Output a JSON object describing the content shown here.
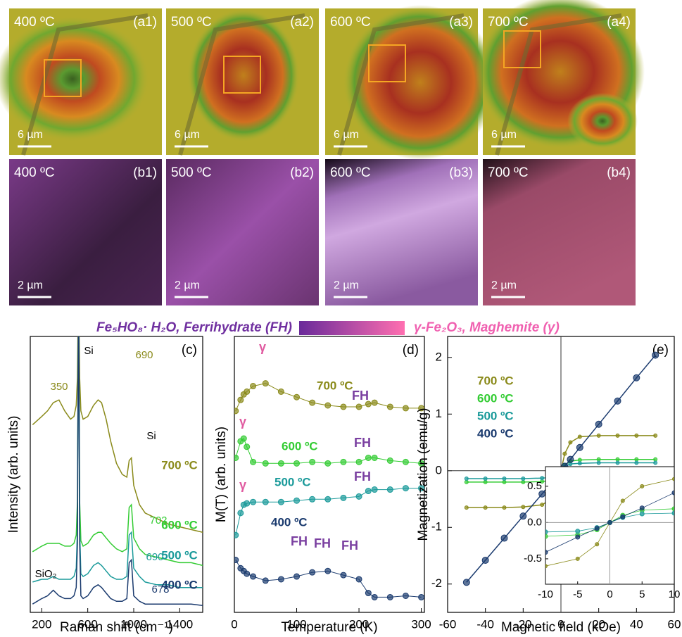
{
  "micrographs": [
    {
      "temperature": "400 ºC",
      "label": "(a1)",
      "scale": "6 µm"
    },
    {
      "temperature": "500 ºC",
      "label": "(a2)",
      "scale": "6 µm"
    },
    {
      "temperature": "600 ºC",
      "label": "(a3)",
      "scale": "6 µm"
    },
    {
      "temperature": "700 ºC",
      "label": "(a4)",
      "scale": "6 µm"
    },
    {
      "temperature": "400 ºC",
      "label": "(b1)",
      "scale": "2 µm"
    },
    {
      "temperature": "500 ºC",
      "label": "(b2)",
      "scale": "2 µm"
    },
    {
      "temperature": "600 ºC",
      "label": "(b3)",
      "scale": "2 µm"
    },
    {
      "temperature": "700 ºC",
      "label": "(b4)",
      "scale": "2 µm"
    }
  ],
  "color_legend": {
    "left": "Fe₅HO₈· H₂O, Ferrihydrate (FH)",
    "right": "γ-Fe₂O₃, Maghemite (γ)",
    "left_color": "#7030a0",
    "right_color": "#f060b0"
  },
  "chart_data": [
    {
      "type": "line",
      "panel": "(c)",
      "xlabel": "Raman shift (cm⁻¹)",
      "ylabel": "Intensity (arb. units)",
      "markers": false,
      "xlim": [
        100,
        1600
      ],
      "xticks": [
        200,
        600,
        1000,
        1400
      ],
      "ylim": [
        0,
        10
      ],
      "x": [
        120,
        200,
        250,
        300,
        350,
        400,
        450,
        480,
        500,
        510,
        520,
        530,
        540,
        560,
        600,
        650,
        690,
        720,
        760,
        800,
        850,
        900,
        940,
        960,
        980,
        1000,
        1050,
        1100,
        1200,
        1300,
        1400,
        1500,
        1600
      ],
      "series": [
        {
          "name": "700 ºC",
          "color": "#8a8a1a",
          "values": [
            6.8,
            7.1,
            7.3,
            7.6,
            7.7,
            7.3,
            7.0,
            7.1,
            7.5,
            8.5,
            12,
            8.5,
            7.3,
            7.0,
            7.1,
            7.5,
            7.7,
            7.6,
            7.0,
            6.2,
            5.4,
            5.0,
            4.9,
            5.5,
            5.6,
            4.6,
            3.9,
            3.6,
            3.4,
            3.2,
            3.1,
            3.0,
            2.9
          ]
        },
        {
          "name": "600 ºC",
          "color": "#33cc33",
          "values": [
            2.2,
            2.4,
            2.5,
            2.5,
            2.5,
            2.4,
            2.4,
            2.5,
            2.8,
            4,
            12,
            4,
            2.6,
            2.4,
            2.5,
            2.8,
            2.9,
            2.9,
            2.7,
            2.5,
            2.3,
            2.2,
            2.3,
            3.8,
            3.9,
            2.7,
            2.3,
            2.1,
            2.0,
            1.9,
            1.8,
            1.8,
            1.7
          ]
        },
        {
          "name": "500 ºC",
          "color": "#1a9a9a",
          "values": [
            1.1,
            1.2,
            1.2,
            1.3,
            1.2,
            1.2,
            1.2,
            1.3,
            1.6,
            3,
            12,
            3,
            1.4,
            1.3,
            1.4,
            1.7,
            1.8,
            1.7,
            1.5,
            1.3,
            1.2,
            1.2,
            1.3,
            2.8,
            2.9,
            1.6,
            1.3,
            1.1,
            1.0,
            1.0,
            0.9,
            0.9,
            0.9
          ]
        },
        {
          "name": "400 ºC",
          "color": "#1a3a6e",
          "values": [
            0.3,
            0.5,
            0.6,
            0.8,
            0.6,
            0.5,
            0.5,
            0.6,
            0.9,
            2.5,
            12,
            2.5,
            0.6,
            0.5,
            0.6,
            0.9,
            1.0,
            0.9,
            0.7,
            0.5,
            0.4,
            0.4,
            0.5,
            1.8,
            1.9,
            0.6,
            0.4,
            0.3,
            0.3,
            0.3,
            0.3,
            0.3,
            0.25
          ]
        }
      ],
      "annotations": [
        {
          "text": "350",
          "color": "#8a8a1a"
        },
        {
          "text": "690",
          "color": "#8a8a1a"
        },
        {
          "text": "702",
          "color": "#33cc33"
        },
        {
          "text": "690",
          "color": "#1a9a9a"
        },
        {
          "text": "678",
          "color": "#1a3a6e"
        },
        {
          "text": "Si",
          "color": "#000000"
        },
        {
          "text": "Si",
          "color": "#000000"
        },
        {
          "text": "SiO₂",
          "color": "#000000"
        }
      ]
    },
    {
      "type": "line",
      "panel": "(d)",
      "xlabel": "Temperature (K)",
      "ylabel": "M(T) (arb. units)",
      "markers": true,
      "xlim": [
        0,
        305
      ],
      "xticks": [
        0,
        100,
        200,
        300
      ],
      "ylim": [
        0,
        10
      ],
      "x": [
        2,
        10,
        15,
        20,
        30,
        50,
        75,
        100,
        125,
        150,
        175,
        200,
        215,
        225,
        250,
        275,
        300
      ],
      "series": [
        {
          "name": "700 ºC",
          "color": "#8a8a1a",
          "values": [
            7.3,
            7.7,
            7.9,
            8.0,
            8.2,
            8.3,
            8.0,
            7.8,
            7.6,
            7.5,
            7.45,
            7.45,
            7.55,
            7.6,
            7.45,
            7.4,
            7.4
          ]
        },
        {
          "name": "600 ºC",
          "color": "#33cc33",
          "values": [
            5.6,
            6.2,
            6.3,
            6.0,
            5.45,
            5.4,
            5.4,
            5.4,
            5.45,
            5.4,
            5.45,
            5.45,
            5.6,
            5.6,
            5.5,
            5.45,
            5.4
          ]
        },
        {
          "name": "500 ºC",
          "color": "#1a9a9a",
          "values": [
            2.8,
            3.6,
            3.9,
            3.95,
            4.0,
            4.0,
            4.0,
            4.05,
            4.1,
            4.1,
            4.15,
            4.2,
            4.4,
            4.45,
            4.45,
            4.5,
            4.5
          ]
        },
        {
          "name": "400 ºC",
          "color": "#1a3a6e",
          "values": [
            1.9,
            1.6,
            1.5,
            1.4,
            1.3,
            1.15,
            1.2,
            1.3,
            1.45,
            1.5,
            1.35,
            1.2,
            0.7,
            0.55,
            0.55,
            0.6,
            0.55
          ]
        }
      ],
      "annotations": [
        {
          "text": "γ",
          "color": "#e05aa0"
        },
        {
          "text": "γ",
          "color": "#e05aa0"
        },
        {
          "text": "γ",
          "color": "#e05aa0"
        },
        {
          "text": "FH",
          "color": "#7a3fa0"
        },
        {
          "text": "FH",
          "color": "#7a3fa0"
        },
        {
          "text": "FH",
          "color": "#7a3fa0"
        },
        {
          "text": "FH",
          "color": "#7a3fa0"
        },
        {
          "text": "FH",
          "color": "#7a3fa0"
        },
        {
          "text": "FH",
          "color": "#7a3fa0"
        }
      ]
    },
    {
      "type": "line",
      "panel": "(e)",
      "xlabel": "Magnetic field (kOe)",
      "ylabel": "Magnetization (emu/g)",
      "markers": true,
      "xlim": [
        -60,
        60
      ],
      "xticks": [
        -60,
        -40,
        -20,
        0,
        20,
        40,
        60
      ],
      "ylim": [
        -2.5,
        2.37
      ],
      "yticks": [
        -2,
        -1,
        0,
        1,
        2
      ],
      "x": [
        -50,
        -40,
        -30,
        -20,
        -10,
        -5,
        -2,
        0,
        2,
        5,
        10,
        20,
        30,
        40,
        50
      ],
      "series": [
        {
          "name": "700 ºC",
          "color": "#8a8a1a",
          "values": [
            -0.65,
            -0.65,
            -0.65,
            -0.64,
            -0.6,
            -0.5,
            -0.3,
            0,
            0.3,
            0.5,
            0.6,
            0.62,
            0.62,
            0.62,
            0.62
          ]
        },
        {
          "name": "600 ºC",
          "color": "#33cc33",
          "values": [
            -0.2,
            -0.2,
            -0.2,
            -0.2,
            -0.19,
            -0.17,
            -0.1,
            0,
            0.1,
            0.17,
            0.19,
            0.2,
            0.2,
            0.2,
            0.2
          ]
        },
        {
          "name": "500 ºC",
          "color": "#1a9a9a",
          "values": [
            -0.14,
            -0.14,
            -0.14,
            -0.14,
            -0.13,
            -0.12,
            -0.07,
            0,
            0.07,
            0.12,
            0.13,
            0.14,
            0.14,
            0.14,
            0.14
          ]
        },
        {
          "name": "400 ºC",
          "color": "#1a3a6e",
          "values": [
            -1.97,
            -1.58,
            -1.19,
            -0.8,
            -0.41,
            -0.2,
            -0.08,
            0,
            0.08,
            0.2,
            0.41,
            0.82,
            1.23,
            1.64,
            2.04
          ]
        }
      ],
      "inset": {
        "xlim": [
          -10,
          10
        ],
        "xticks": [
          -10,
          -5,
          0,
          5,
          10
        ],
        "ylim": [
          -0.85,
          0.77
        ],
        "yticks": [
          -0.5,
          {
            "value": 0,
            "label": "0.0"
          },
          0.5
        ]
      }
    }
  ]
}
